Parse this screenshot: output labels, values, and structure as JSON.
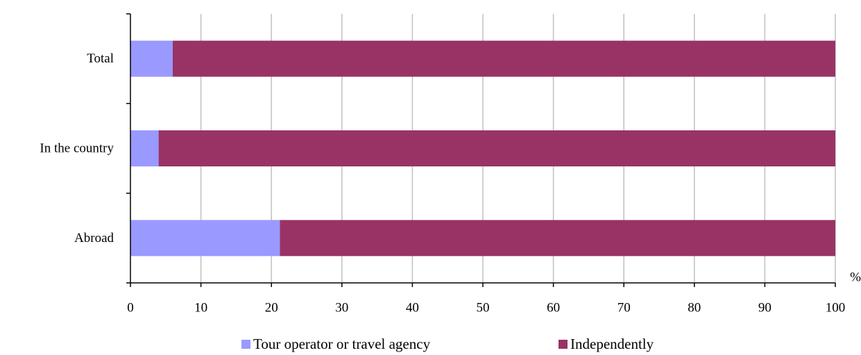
{
  "chart_data": {
    "type": "bar",
    "orientation": "horizontal",
    "stacked": true,
    "categories": [
      "Total",
      "In the country",
      "Abroad"
    ],
    "series": [
      {
        "name": "Tour operator or travel agency",
        "values": [
          6,
          4,
          21.2
        ],
        "color": "#9999ff"
      },
      {
        "name": "Independently",
        "values": [
          94,
          96,
          78.8
        ],
        "color": "#993366"
      }
    ],
    "xticks": [
      "0",
      "10",
      "20",
      "30",
      "40",
      "50",
      "60",
      "70",
      "80",
      "90",
      "100"
    ],
    "xlim": [
      0,
      100
    ],
    "xunit": "%",
    "grid": true,
    "legend_position": "bottom"
  }
}
